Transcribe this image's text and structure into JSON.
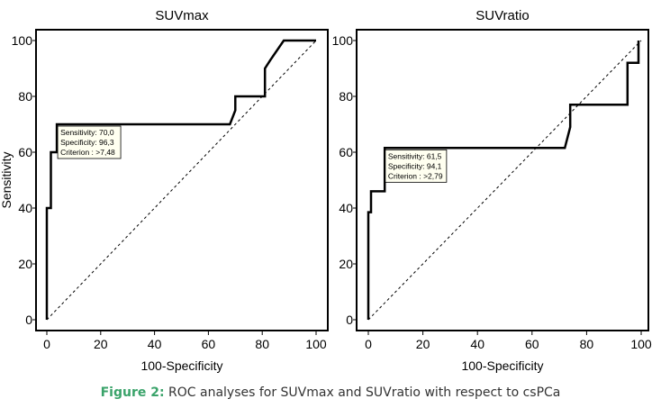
{
  "caption": {
    "label": "Figure 2:",
    "text": "ROC analyses for SUVmax and SUVratio with respect to csPCa"
  },
  "colors": {
    "curve": "#000000",
    "diagonal": "#000000",
    "tooltip_bg": "#fffff0",
    "caption_label": "#3aa36a"
  },
  "chart_data": [
    {
      "type": "line",
      "title": "SUVmax",
      "xlabel": "100-Specificity",
      "ylabel": "Sensitivity",
      "xlim": [
        0,
        100
      ],
      "ylim": [
        0,
        100
      ],
      "xticks": [
        0,
        20,
        40,
        60,
        80,
        100
      ],
      "yticks": [
        0,
        20,
        40,
        60,
        80,
        100
      ],
      "grid": false,
      "diagonal_reference": true,
      "series": [
        {
          "x": [
            0,
            0,
            1.5,
            1.5,
            3.7,
            3.7,
            68,
            70,
            70,
            81,
            81,
            83,
            88,
            100
          ],
          "y": [
            0,
            40,
            40,
            60,
            60,
            70,
            70,
            75,
            80,
            80,
            90,
            93,
            100,
            100
          ]
        }
      ],
      "annotation": {
        "lines": [
          "Sensitivity: 70,0",
          "Specificity: 96,3",
          "Criterion : >7,48"
        ],
        "x": 3.7,
        "y": 70
      }
    },
    {
      "type": "line",
      "title": "SUVratio",
      "xlabel": "100-Specificity",
      "ylabel": "",
      "xlim": [
        0,
        100
      ],
      "ylim": [
        0,
        100
      ],
      "xticks": [
        0,
        20,
        40,
        60,
        80,
        100
      ],
      "yticks": [
        0,
        20,
        40,
        60,
        80,
        100
      ],
      "grid": false,
      "diagonal_reference": true,
      "series": [
        {
          "x": [
            0,
            0,
            1,
            1,
            2,
            2,
            6,
            6,
            72,
            74,
            74,
            95,
            95,
            99,
            99
          ],
          "y": [
            0,
            38.5,
            38.5,
            46,
            46,
            46,
            46,
            61.5,
            61.5,
            69,
            77,
            77,
            92,
            92,
            100
          ]
        }
      ],
      "annotation": {
        "lines": [
          "Sensitivity: 61,5",
          "Specificity: 94,1",
          "Criterion : >2,79"
        ],
        "x": 5.9,
        "y": 61.5
      }
    }
  ]
}
